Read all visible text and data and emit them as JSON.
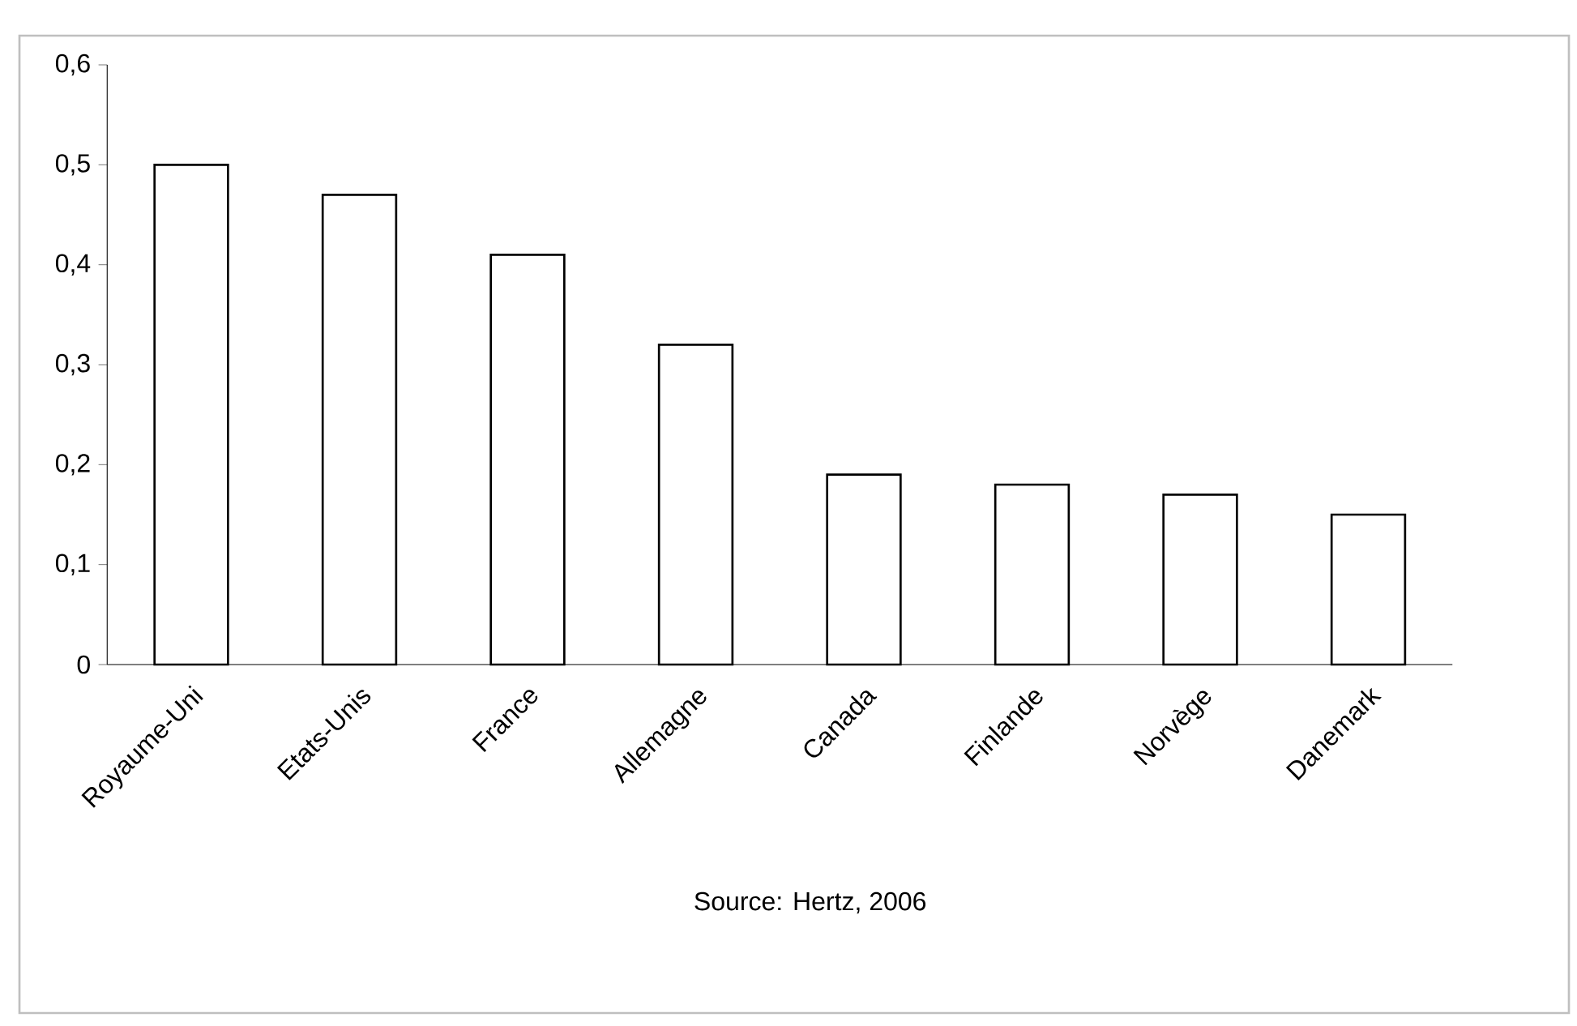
{
  "chart_data": {
    "type": "bar",
    "categories": [
      "Royaume-Uni",
      "Etats-Unis",
      "France",
      "Allemagne",
      "Canada",
      "Finlande",
      "Norvège",
      "Danemark"
    ],
    "values": [
      0.5,
      0.47,
      0.41,
      0.32,
      0.19,
      0.18,
      0.17,
      0.15
    ],
    "color": "#ffffff",
    "ylim": [
      0,
      0.6
    ],
    "yticks": [
      0,
      {
        "value": 0.1,
        "label": "0,1"
      },
      {
        "value": 0.2,
        "label": "0,2"
      },
      {
        "value": 0.3,
        "label": "0,3"
      },
      {
        "value": 0.4,
        "label": "0,4"
      },
      {
        "value": 0.5,
        "label": "0,5"
      },
      {
        "value": 0.6,
        "label": "0,6"
      }
    ],
    "annotations": [
      "Source: Hertz, 2006"
    ]
  }
}
